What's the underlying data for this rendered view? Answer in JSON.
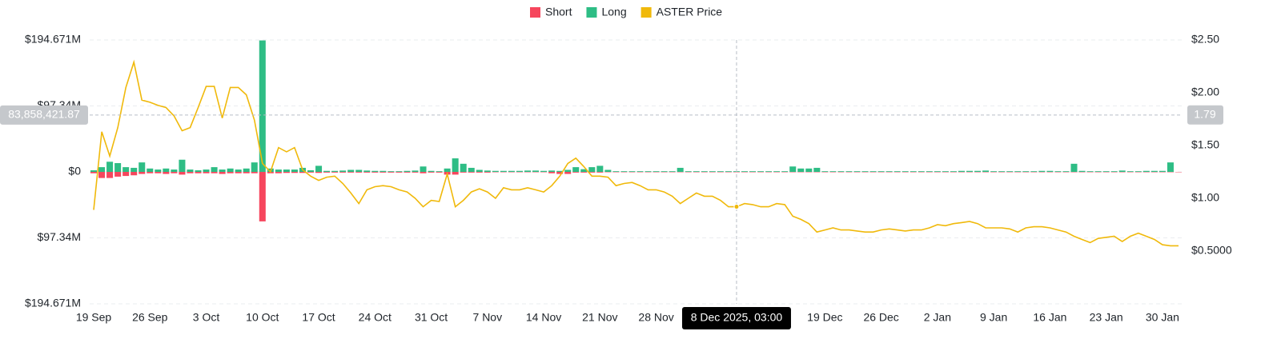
{
  "chart_data": {
    "type": "bar_line",
    "categories": [
      "19 Sep",
      null,
      null,
      null,
      null,
      null,
      null,
      "26 Sep",
      null,
      null,
      null,
      null,
      null,
      null,
      "3 Oct",
      null,
      null,
      null,
      null,
      null,
      null,
      "10 Oct",
      null,
      null,
      null,
      null,
      null,
      null,
      "17 Oct",
      null,
      null,
      null,
      null,
      null,
      null,
      "24 Oct",
      null,
      null,
      null,
      null,
      null,
      null,
      "31 Oct",
      null,
      null,
      null,
      null,
      null,
      null,
      "7 Nov",
      null,
      null,
      null,
      null,
      null,
      null,
      "14 Nov",
      null,
      null,
      null,
      null,
      null,
      null,
      "21 Nov",
      null,
      null,
      null,
      null,
      null,
      null,
      "28 Nov",
      null,
      null,
      null,
      null,
      null,
      null,
      null,
      null,
      null,
      null,
      null,
      null,
      null,
      null,
      null,
      null,
      null,
      null,
      null,
      null,
      "19 Dec",
      null,
      null,
      null,
      null,
      null,
      null,
      "26 Dec",
      null,
      null,
      null,
      null,
      null,
      null,
      "2 Jan",
      null,
      null,
      null,
      null,
      null,
      null,
      "9 Jan",
      null,
      null,
      null,
      null,
      null,
      null,
      "16 Jan",
      null,
      null,
      null,
      null,
      null,
      null,
      "23 Jan",
      null,
      null,
      null,
      null,
      null,
      null,
      "30 Jan",
      null,
      null
    ],
    "series": [
      {
        "name": "Short",
        "color": "#f6465d",
        "type": "bar",
        "values": [
          -2,
          -9,
          -9,
          -7,
          -6,
          -5,
          -3,
          -2,
          -2,
          -3,
          -2,
          -4,
          -2,
          -2,
          -2,
          -2,
          -3,
          -2,
          -2,
          -2,
          -2,
          -73,
          -2,
          -2,
          -1.5,
          -1.5,
          -1.5,
          -1,
          -1.5,
          -1,
          -1,
          -1,
          -1,
          -1,
          -1,
          -1,
          -1,
          -1,
          -1,
          -1,
          -1,
          -2,
          -1,
          -1,
          -4,
          -4,
          -1,
          -1,
          -1,
          -1,
          -0.5,
          -0.5,
          -0.5,
          -0.5,
          -0.5,
          -0.5,
          -0.5,
          -2,
          -3,
          -3,
          -1,
          -1,
          -1,
          -1,
          -0.5,
          -0.5,
          -0.5,
          -0.5,
          -0.5,
          -0.5,
          -0.5,
          -0.5,
          -0.5,
          -0.5,
          -0.5,
          -0.5,
          -0.5,
          -0.5,
          -0.5,
          -0.5,
          -0.5,
          -0.5,
          -0.5,
          -0.5,
          -0.5,
          -0.5,
          -0.5,
          -0.5,
          -0.5,
          -0.5,
          -0.5,
          -0.5,
          -0.5,
          -0.5,
          -0.5,
          -0.5,
          -0.5,
          -0.5,
          -0.5,
          -0.5,
          -0.5,
          -0.5,
          -0.5,
          -0.5,
          -0.5,
          -0.5,
          -0.5,
          -0.5,
          -0.5,
          -0.5,
          -0.5,
          -0.5,
          -0.5,
          -0.5,
          -0.5,
          -0.5,
          -0.5,
          -0.5,
          -0.5,
          -0.5,
          -0.5,
          -0.5,
          -0.5,
          -0.5,
          -0.5,
          -0.5,
          -0.5,
          -0.5,
          -0.5,
          -0.5,
          -0.5,
          -0.5,
          -0.5,
          -0.5,
          -0.5,
          -0.5
        ]
      },
      {
        "name": "Long",
        "color": "#2ebd85",
        "type": "bar",
        "values": [
          2.4,
          7,
          15,
          13,
          7,
          6,
          14,
          5,
          3.5,
          5,
          3.5,
          18,
          3.5,
          2.4,
          3.5,
          7,
          3.5,
          5,
          3.5,
          5,
          14,
          194,
          5,
          3.5,
          3.5,
          3.5,
          6,
          2.4,
          9,
          1.5,
          1.5,
          2,
          3,
          3,
          2,
          1.5,
          1.5,
          1,
          1,
          1.5,
          2,
          8,
          1.5,
          1,
          5,
          20,
          12,
          6,
          3,
          2,
          1.5,
          1.5,
          1.5,
          1.5,
          2,
          2,
          1.5,
          2,
          1.5,
          3,
          7,
          4,
          7,
          9,
          3,
          1,
          1,
          1,
          1,
          1,
          1,
          1,
          1,
          6,
          1,
          1,
          1,
          1,
          1,
          1,
          1,
          1,
          1,
          1,
          1,
          1,
          1,
          8,
          5,
          5,
          6,
          1,
          1,
          1,
          1,
          1,
          1,
          1,
          1,
          1,
          1,
          1,
          1,
          1,
          1,
          1,
          1,
          1,
          1.5,
          1.5,
          1.5,
          2,
          1,
          1,
          1,
          1,
          1,
          1,
          1.5,
          1.5,
          1,
          1,
          12,
          1.5,
          1,
          1,
          1,
          1,
          2,
          1,
          1,
          1.5,
          1.5,
          1.5,
          14,
          0
        ]
      },
      {
        "name": "ASTER Price",
        "color": "#f0b90b",
        "type": "line",
        "axis": "y2",
        "values": [
          0.89,
          1.63,
          1.4,
          1.67,
          2.05,
          2.29,
          1.93,
          1.91,
          1.88,
          1.86,
          1.78,
          1.64,
          1.67,
          1.86,
          2.06,
          2.06,
          1.76,
          2.05,
          2.05,
          1.98,
          1.74,
          1.33,
          1.25,
          1.48,
          1.44,
          1.48,
          1.27,
          1.21,
          1.17,
          1.2,
          1.21,
          1.14,
          1.05,
          0.95,
          1.08,
          1.11,
          1.12,
          1.11,
          1.08,
          1.06,
          1.0,
          0.92,
          0.98,
          0.97,
          1.23,
          0.92,
          0.98,
          1.06,
          1.09,
          1.06,
          1.0,
          1.1,
          1.08,
          1.08,
          1.1,
          1.08,
          1.06,
          1.12,
          1.21,
          1.33,
          1.38,
          1.3,
          1.21,
          1.21,
          1.2,
          1.12,
          1.14,
          1.15,
          1.12,
          1.08,
          1.08,
          1.06,
          1.02,
          0.95,
          1.0,
          1.05,
          1.02,
          1.02,
          0.98,
          0.92,
          0.92,
          0.95,
          0.94,
          0.92,
          0.92,
          0.95,
          0.94,
          0.83,
          0.8,
          0.76,
          0.68,
          0.7,
          0.72,
          0.7,
          0.7,
          0.69,
          0.68,
          0.68,
          0.7,
          0.71,
          0.7,
          0.69,
          0.7,
          0.7,
          0.72,
          0.75,
          0.74,
          0.76,
          0.77,
          0.78,
          0.76,
          0.72,
          0.72,
          0.72,
          0.71,
          0.68,
          0.72,
          0.73,
          0.73,
          0.72,
          0.7,
          0.68,
          0.64,
          0.61,
          0.58,
          0.62,
          0.63,
          0.64,
          0.59,
          0.64,
          0.67,
          0.64,
          0.61,
          0.56,
          0.55,
          0.55
        ]
      }
    ],
    "ylim": [
      -194.671,
      194.671
    ],
    "yticks": [
      {
        "value": -194.671,
        "label": "$194.671M"
      },
      {
        "value": -97.34,
        "label": "$97.34M"
      },
      {
        "value": 0,
        "label": "$0"
      },
      {
        "value": 97.34,
        "label": "$97.34M"
      },
      {
        "value": 194.671,
        "label": "$194.671M"
      }
    ],
    "y2lim": [
      0,
      2.5
    ],
    "y2ticks": [
      {
        "value": 0.5,
        "label": "$0.5000"
      },
      {
        "value": 1,
        "label": "$1.00"
      },
      {
        "value": 1.5,
        "label": "$1.50"
      },
      {
        "value": 2,
        "label": "$2.00"
      },
      {
        "value": 2.5,
        "label": "$2.50"
      }
    ],
    "grid": true,
    "legend": "top",
    "crosshair": {
      "x": 80,
      "label": "8 Dec 2025, 03:00",
      "y": 83.85842187,
      "y_label": "83,858,421.87",
      "y2": 1.79
    }
  }
}
